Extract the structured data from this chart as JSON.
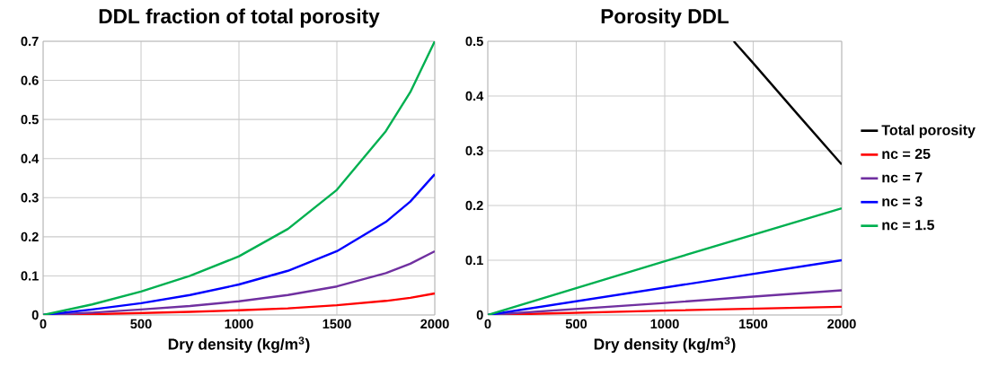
{
  "chart_data": [
    {
      "type": "line",
      "title": "DDL fraction of total porosity",
      "xlabel": "Dry density (kg/m$^{3}$)",
      "xlim": [
        0,
        2000
      ],
      "xticks": [
        0,
        500,
        1000,
        1500,
        2000
      ],
      "ylim": [
        0,
        0.7
      ],
      "yticks": [
        0,
        0.1,
        0.2,
        0.3,
        0.4,
        0.5,
        0.6,
        0.7
      ],
      "grid": true,
      "legend": false,
      "marker": "none",
      "line_style": "solid",
      "x": [
        0,
        250,
        500,
        750,
        1000,
        1250,
        1500,
        1750,
        1875,
        2000
      ],
      "series": [
        {
          "color": "#ff0000",
          "values": [
            0,
            0.002,
            0.005,
            0.008,
            0.012,
            0.017,
            0.025,
            0.036,
            0.044,
            0.055
          ]
        },
        {
          "color": "#7030a0",
          "values": [
            0,
            0.006,
            0.014,
            0.023,
            0.035,
            0.051,
            0.073,
            0.107,
            0.131,
            0.163
          ]
        },
        {
          "color": "#0000ff",
          "values": [
            0,
            0.014,
            0.03,
            0.051,
            0.078,
            0.113,
            0.163,
            0.238,
            0.29,
            0.36
          ]
        },
        {
          "color": "#00b050",
          "values": [
            0,
            0.027,
            0.06,
            0.1,
            0.15,
            0.22,
            0.32,
            0.47,
            0.57,
            0.7
          ]
        }
      ]
    },
    {
      "type": "line",
      "title": "Porosity DDL",
      "xlabel": "Dry density (kg/m$^{3}$)",
      "xlim": [
        0,
        2000
      ],
      "xticks": [
        0,
        500,
        1000,
        1500,
        2000
      ],
      "ylim": [
        0,
        0.5
      ],
      "yticks": [
        0,
        0.1,
        0.2,
        0.3,
        0.4,
        0.5
      ],
      "grid": true,
      "legend": "right",
      "marker": "none",
      "line_style": "solid",
      "x": [
        0,
        1000,
        2000
      ],
      "series": [
        {
          "name": "Total porosity",
          "color": "#000000",
          "x": [
            1390,
            1500,
            1750,
            2000
          ],
          "values": [
            0.5,
            0.46,
            0.367,
            0.275
          ]
        },
        {
          "name": "nc = 25",
          "color": "#ff0000",
          "values": [
            0,
            0.008,
            0.015
          ]
        },
        {
          "name": "nc = 7",
          "color": "#7030a0",
          "values": [
            0,
            0.022,
            0.045
          ]
        },
        {
          "name": "nc = 3",
          "color": "#0000ff",
          "values": [
            0,
            0.05,
            0.1
          ]
        },
        {
          "name": "nc = 1.5",
          "color": "#00b050",
          "values": [
            0,
            0.098,
            0.195
          ]
        }
      ]
    }
  ]
}
